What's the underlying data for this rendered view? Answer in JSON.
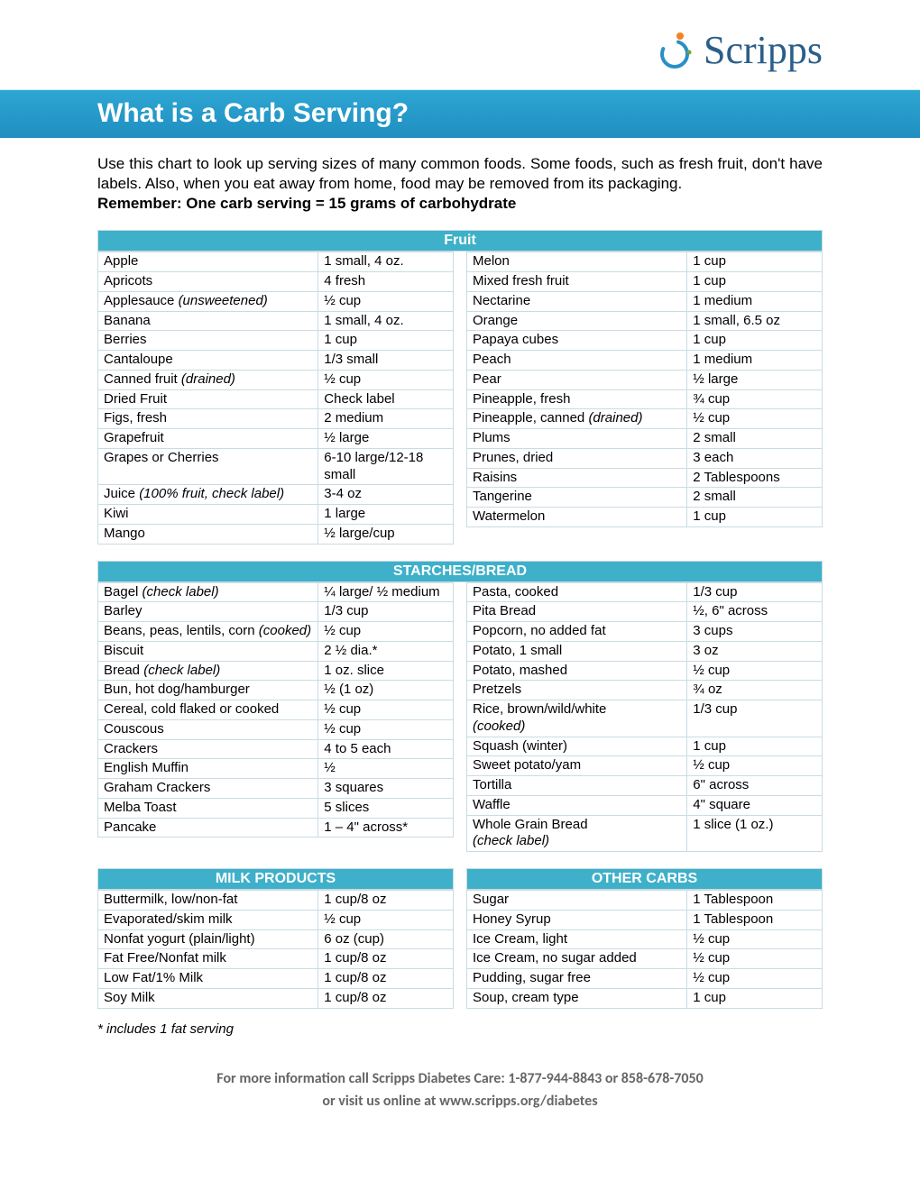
{
  "colors": {
    "brand_blue": "#2b5f8a",
    "title_grad_top": "#2ea7d3",
    "title_grad_bottom": "#1f8ec1",
    "section_bg": "#3eb0c9",
    "cell_border": "#c9dce3",
    "footer_text": "#666666",
    "background": "#ffffff"
  },
  "logo": {
    "text": "Scripps"
  },
  "title": "What is a Carb Serving?",
  "intro_line1": "Use this chart to look up serving sizes of many common foods. Some foods, such as fresh fruit, don't have labels. Also, when you eat away from home, food may be removed from its packaging.",
  "intro_bold": "Remember: One carb serving = 15 grams of carbohydrate",
  "sections": {
    "fruit": {
      "header": "Fruit",
      "left": [
        {
          "f": "Apple",
          "s": "1 small, 4 oz."
        },
        {
          "f": "Apricots",
          "s": "4 fresh"
        },
        {
          "f": "Applesauce <span class=\"italic\">(unsweetened)</span>",
          "s": "½ cup"
        },
        {
          "f": "Banana",
          "s": "1 small, 4 oz."
        },
        {
          "f": "Berries",
          "s": "1 cup"
        },
        {
          "f": "Cantaloupe",
          "s": "1/3 small"
        },
        {
          "f": "Canned fruit <span class=\"italic\">(drained)</span>",
          "s": "½ cup"
        },
        {
          "f": "Dried Fruit",
          "s": "Check label"
        },
        {
          "f": "Figs, fresh",
          "s": "2 medium"
        },
        {
          "f": "Grapefruit",
          "s": "½ large"
        },
        {
          "f": "Grapes or Cherries",
          "s": "6-10 large/12-18 small"
        },
        {
          "f": "Juice <span class=\"italic\">(100% fruit, check label)</span>",
          "s": "3-4 oz"
        },
        {
          "f": "Kiwi",
          "s": "1 large"
        },
        {
          "f": "Mango",
          "s": "½ large/cup"
        }
      ],
      "right": [
        {
          "f": "Melon",
          "s": "1 cup"
        },
        {
          "f": "Mixed fresh fruit",
          "s": "1 cup"
        },
        {
          "f": "Nectarine",
          "s": "1 medium"
        },
        {
          "f": "Orange",
          "s": "1 small, 6.5 oz"
        },
        {
          "f": "Papaya cubes",
          "s": "1 cup"
        },
        {
          "f": "Peach",
          "s": "1 medium"
        },
        {
          "f": "Pear",
          "s": "½ large"
        },
        {
          "f": "Pineapple, fresh",
          "s": "¾ cup"
        },
        {
          "f": "Pineapple, canned <span class=\"italic\">(drained)</span>",
          "s": "½ cup"
        },
        {
          "f": "Plums",
          "s": "2 small"
        },
        {
          "f": "Prunes, dried",
          "s": "3 each"
        },
        {
          "f": "Raisins",
          "s": "2 Tablespoons"
        },
        {
          "f": "Tangerine",
          "s": "2 small"
        },
        {
          "f": "Watermelon",
          "s": "1 cup"
        }
      ]
    },
    "starches": {
      "header": "STARCHES/BREAD",
      "left": [
        {
          "f": "Bagel <span class=\"italic\">(check label)</span>",
          "s": "¼ large/ ½ medium"
        },
        {
          "f": "Barley",
          "s": "1/3 cup"
        },
        {
          "f": "Beans, peas, lentils, corn <span class=\"italic\">(cooked)</span>",
          "s": "½ cup"
        },
        {
          "f": "Biscuit",
          "s": "2 ½ dia.*"
        },
        {
          "f": "Bread <span class=\"italic\">(check label)</span>",
          "s": "1 oz. slice"
        },
        {
          "f": "Bun, hot dog/hamburger",
          "s": "½ (1 oz)"
        },
        {
          "f": "Cereal, cold flaked or cooked",
          "s": "½ cup"
        },
        {
          "f": "Couscous",
          "s": "½ cup"
        },
        {
          "f": "Crackers",
          "s": "4 to 5 each"
        },
        {
          "f": "English Muffin",
          "s": "½"
        },
        {
          "f": "Graham Crackers",
          "s": "3 squares"
        },
        {
          "f": "Melba Toast",
          "s": "5 slices"
        },
        {
          "f": "Pancake",
          "s": "1 – 4\" across*"
        }
      ],
      "right": [
        {
          "f": "Pasta, cooked",
          "s": "1/3 cup"
        },
        {
          "f": "Pita Bread",
          "s": "½, 6\" across"
        },
        {
          "f": "Popcorn, no added fat",
          "s": "3 cups"
        },
        {
          "f": "Potato, 1 small",
          "s": "3 oz"
        },
        {
          "f": "Potato, mashed",
          "s": "½ cup"
        },
        {
          "f": "Pretzels",
          "s": "¾ oz"
        },
        {
          "f": "Rice, brown/wild/white<br><span class=\"italic\">(cooked)</span>",
          "s": "1/3 cup"
        },
        {
          "f": "Squash (winter)",
          "s": "1 cup"
        },
        {
          "f": "Sweet potato/yam",
          "s": "½ cup"
        },
        {
          "f": "Tortilla",
          "s": "6\" across"
        },
        {
          "f": "Waffle",
          "s": "4\" square"
        },
        {
          "f": "Whole Grain Bread<br><span class=\"italic\">(check label)</span>",
          "s": "1 slice (1 oz.)"
        }
      ]
    },
    "milk": {
      "header": "MILK PRODUCTS",
      "rows": [
        {
          "f": "Buttermilk, low/non-fat",
          "s": "1 cup/8 oz"
        },
        {
          "f": "Evaporated/skim milk",
          "s": "½ cup"
        },
        {
          "f": "Nonfat yogurt (plain/light)",
          "s": "6 oz (cup)"
        },
        {
          "f": "Fat Free/Nonfat milk",
          "s": "1 cup/8 oz"
        },
        {
          "f": "Low Fat/1% Milk",
          "s": "1 cup/8 oz"
        },
        {
          "f": "Soy Milk",
          "s": "1 cup/8 oz"
        }
      ]
    },
    "other": {
      "header": "OTHER CARBS",
      "rows": [
        {
          "f": "Sugar",
          "s": "1 Tablespoon"
        },
        {
          "f": "Honey Syrup",
          "s": "1 Tablespoon"
        },
        {
          "f": "Ice Cream, light",
          "s": "½ cup"
        },
        {
          "f": "Ice Cream, no sugar added",
          "s": "½ cup"
        },
        {
          "f": "Pudding, sugar free",
          "s": "½ cup"
        },
        {
          "f": "Soup, cream type",
          "s": "1 cup"
        }
      ]
    }
  },
  "footnote": "* includes 1 fat serving",
  "footer_line1": "For more information call Scripps Diabetes Care:  1-877-944-8843 or 858-678-7050",
  "footer_line2": "or visit us online at www.scripps.org/diabetes"
}
